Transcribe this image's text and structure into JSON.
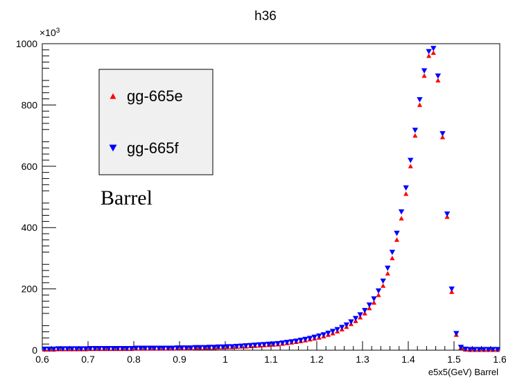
{
  "chart_data": {
    "type": "scatter",
    "title": "h36",
    "xlabel": "e5x5(GeV) Barrel",
    "ylabel": "",
    "y_exponent_label": "×10",
    "y_exponent_power": "3",
    "xlim": [
      0.6,
      1.6
    ],
    "ylim": [
      0,
      1000
    ],
    "x_ticks": [
      0.6,
      0.7,
      0.8,
      0.9,
      1.0,
      1.1,
      1.2,
      1.3,
      1.4,
      1.5,
      1.6
    ],
    "x_tick_labels": [
      "0.6",
      "0.7",
      "0.8",
      "0.9",
      "1",
      "1.1",
      "1.2",
      "1.3",
      "1.4",
      "1.5",
      "1.6"
    ],
    "y_ticks": [
      0,
      200,
      400,
      600,
      800,
      1000
    ],
    "y_tick_labels": [
      "0",
      "200",
      "400",
      "600",
      "800",
      "1000"
    ],
    "grid": false,
    "legend_position": "top-left",
    "annotation": "Barrel",
    "x": [
      0.605,
      0.615,
      0.625,
      0.635,
      0.645,
      0.655,
      0.665,
      0.675,
      0.685,
      0.695,
      0.705,
      0.715,
      0.725,
      0.735,
      0.745,
      0.755,
      0.765,
      0.775,
      0.785,
      0.795,
      0.805,
      0.815,
      0.825,
      0.835,
      0.845,
      0.855,
      0.865,
      0.875,
      0.885,
      0.895,
      0.905,
      0.915,
      0.925,
      0.935,
      0.945,
      0.955,
      0.965,
      0.975,
      0.985,
      0.995,
      1.005,
      1.015,
      1.025,
      1.035,
      1.045,
      1.055,
      1.065,
      1.075,
      1.085,
      1.095,
      1.105,
      1.115,
      1.125,
      1.135,
      1.145,
      1.155,
      1.165,
      1.175,
      1.185,
      1.195,
      1.205,
      1.215,
      1.225,
      1.235,
      1.245,
      1.255,
      1.265,
      1.275,
      1.285,
      1.295,
      1.305,
      1.315,
      1.325,
      1.335,
      1.345,
      1.355,
      1.365,
      1.375,
      1.385,
      1.395,
      1.405,
      1.415,
      1.425,
      1.435,
      1.445,
      1.455,
      1.465,
      1.475,
      1.485,
      1.495,
      1.505,
      1.515,
      1.525,
      1.535,
      1.545,
      1.555,
      1.565,
      1.575,
      1.585,
      1.595
    ],
    "series": [
      {
        "name": "gg-665e",
        "color": "#ff0000",
        "marker": "triangle-up",
        "values": [
          2,
          2,
          2,
          3,
          3,
          3,
          3,
          3,
          3,
          3,
          4,
          4,
          4,
          4,
          4,
          4,
          4,
          4,
          4,
          4,
          5,
          5,
          5,
          5,
          5,
          5,
          5,
          5,
          5,
          6,
          6,
          6,
          6,
          7,
          7,
          7,
          8,
          8,
          9,
          9,
          10,
          10,
          11,
          12,
          12,
          13,
          14,
          15,
          16,
          17,
          18,
          19,
          21,
          23,
          25,
          27,
          29,
          32,
          35,
          38,
          41,
          45,
          50,
          55,
          61,
          68,
          76,
          85,
          95,
          107,
          120,
          137,
          155,
          180,
          210,
          250,
          300,
          360,
          430,
          510,
          600,
          700,
          800,
          895,
          960,
          970,
          880,
          695,
          435,
          190,
          50,
          8,
          2,
          1,
          1,
          1,
          1,
          1,
          1,
          1
        ]
      },
      {
        "name": "gg-665f",
        "color": "#0000ff",
        "marker": "triangle-down",
        "values": [
          4,
          4,
          4,
          5,
          5,
          5,
          5,
          5,
          5,
          5,
          6,
          6,
          6,
          6,
          6,
          6,
          6,
          6,
          6,
          6,
          7,
          7,
          7,
          7,
          7,
          7,
          7,
          7,
          7,
          8,
          8,
          8,
          8,
          9,
          9,
          9,
          10,
          10,
          11,
          11,
          12,
          12,
          13,
          14,
          15,
          16,
          17,
          18,
          19,
          20,
          21,
          22,
          24,
          26,
          28,
          30,
          33,
          36,
          39,
          43,
          47,
          51,
          56,
          62,
          68,
          75,
          83,
          93,
          104,
          116,
          130,
          148,
          168,
          194,
          226,
          268,
          320,
          382,
          452,
          530,
          620,
          718,
          818,
          912,
          975,
          985,
          895,
          707,
          445,
          200,
          55,
          10,
          4,
          3,
          3,
          3,
          3,
          3,
          3,
          3
        ]
      }
    ]
  }
}
